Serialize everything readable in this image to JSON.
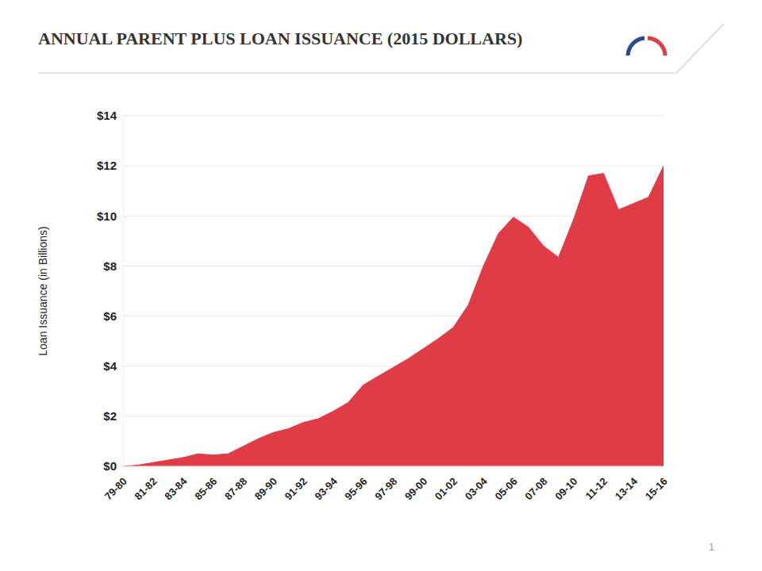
{
  "chart_data": {
    "type": "area",
    "title": "ANNUAL PARENT PLUS LOAN ISSUANCE (2015 DOLLARS)",
    "y_label": "Loan Issuance (in Billions)",
    "page_number": "1",
    "categories": [
      "79-80",
      null,
      "81-82",
      null,
      "83-84",
      null,
      "85-86",
      null,
      "87-88",
      null,
      "89-90",
      null,
      "91-92",
      null,
      "93-94",
      null,
      "95-96",
      null,
      "97-98",
      null,
      "99-00",
      null,
      "01-02",
      null,
      "03-04",
      null,
      "05-06",
      null,
      "07-08",
      null,
      "09-10",
      null,
      "11-12",
      null,
      "13-14",
      null,
      "15-16"
    ],
    "values": [
      0,
      0.05,
      0.15,
      0.25,
      0.35,
      0.5,
      0.45,
      0.5,
      0.8,
      1.1,
      1.35,
      1.5,
      1.75,
      1.9,
      2.2,
      2.55,
      3.25,
      3.6,
      3.95,
      4.3,
      4.7,
      5.1,
      5.55,
      6.45,
      8.0,
      9.3,
      9.95,
      9.55,
      8.8,
      8.35,
      9.85,
      11.6,
      11.7,
      10.25,
      10.5,
      10.75,
      12.0
    ],
    "color": "#e03c47",
    "ylim": [
      0,
      14
    ],
    "yticks": [
      {
        "value": 0,
        "label": "$0"
      },
      {
        "value": 2,
        "label": "$2"
      },
      {
        "value": 4,
        "label": "$4"
      },
      {
        "value": 6,
        "label": "$6"
      },
      {
        "value": 8,
        "label": "$8"
      },
      {
        "value": 10,
        "label": "$10"
      },
      {
        "value": 12,
        "label": "$12"
      },
      {
        "value": 14,
        "label": "$14"
      }
    ],
    "grid": true
  }
}
